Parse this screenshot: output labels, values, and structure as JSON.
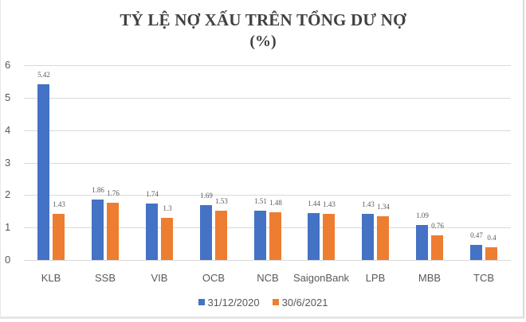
{
  "chart_data": {
    "type": "bar",
    "title": "TỶ LỆ NỢ XẤU  TRÊN TỔNG DƯ NỢ",
    "subtitle": "(%)",
    "xlabel": "",
    "ylabel": "",
    "ylim": [
      0,
      6
    ],
    "yticks": [
      "0",
      "1",
      "2",
      "3",
      "4",
      "5",
      "6"
    ],
    "grid": true,
    "legend_position": "bottom",
    "categories": [
      "KLB",
      "SSB",
      "VIB",
      "OCB",
      "NCB",
      "SaigonBank",
      "LPB",
      "MBB",
      "TCB"
    ],
    "series": [
      {
        "name": "31/12/2020",
        "color": "#4472c4",
        "values": [
          5.42,
          1.86,
          1.74,
          1.69,
          1.51,
          1.44,
          1.43,
          1.09,
          0.47
        ],
        "labels": [
          "5.42",
          "1.86",
          "1.74",
          "1.69",
          "1.51",
          "1.44",
          "1.43",
          "1.09",
          "0.47"
        ]
      },
      {
        "name": "30/6/2021",
        "color": "#ed7d31",
        "values": [
          1.43,
          1.76,
          1.3,
          1.53,
          1.48,
          1.43,
          1.34,
          0.76,
          0.4
        ],
        "labels": [
          "1.43",
          "1.76",
          "1.3",
          "1.53",
          "1.48",
          "1.43",
          "1.34",
          "0.76",
          "0.4"
        ]
      }
    ]
  }
}
